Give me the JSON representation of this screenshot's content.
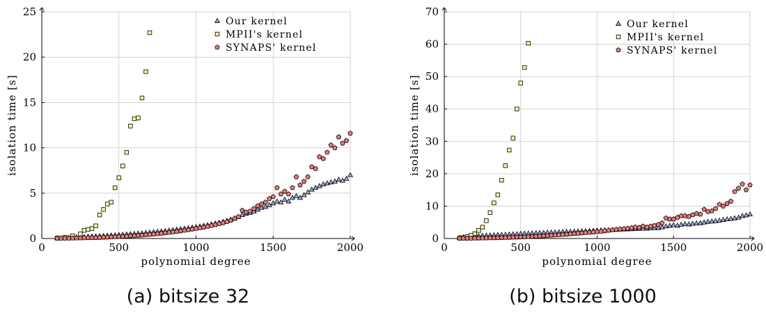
{
  "colors": {
    "ours": "#9aa8d6",
    "mpii": "#f1f3a3",
    "synaps": "#e87b7b",
    "stroke": "#000000",
    "grid": "#c8c8c8"
  },
  "chart_data": [
    {
      "type": "scatter",
      "caption": "(a) bitsize 32",
      "xlabel": "polynomial degree",
      "ylabel": "isolation time [s]",
      "xlim": [
        0,
        2000
      ],
      "ylim": [
        0,
        25
      ],
      "xticks": [
        0,
        500,
        1000,
        1500,
        2000
      ],
      "yticks": [
        0,
        5,
        10,
        15,
        20,
        25
      ],
      "grid": true,
      "legend_position": "top-right",
      "series": [
        {
          "name": "Our kernel",
          "marker": "triangle",
          "x": [
            100,
            125,
            150,
            175,
            200,
            225,
            250,
            275,
            300,
            325,
            350,
            375,
            400,
            425,
            450,
            475,
            500,
            525,
            550,
            575,
            600,
            625,
            650,
            675,
            700,
            725,
            750,
            775,
            800,
            825,
            850,
            875,
            900,
            925,
            950,
            975,
            1000,
            1025,
            1050,
            1075,
            1100,
            1125,
            1150,
            1175,
            1200,
            1225,
            1250,
            1275,
            1300,
            1325,
            1350,
            1375,
            1400,
            1425,
            1450,
            1475,
            1500,
            1525,
            1550,
            1575,
            1600,
            1625,
            1650,
            1675,
            1700,
            1725,
            1750,
            1775,
            1800,
            1825,
            1850,
            1875,
            1900,
            1925,
            1950,
            1975,
            2000
          ],
          "y": [
            0.05,
            0.07,
            0.09,
            0.11,
            0.13,
            0.15,
            0.17,
            0.19,
            0.21,
            0.24,
            0.26,
            0.28,
            0.31,
            0.33,
            0.36,
            0.38,
            0.41,
            0.44,
            0.47,
            0.5,
            0.53,
            0.57,
            0.6,
            0.64,
            0.68,
            0.72,
            0.76,
            0.8,
            0.85,
            0.9,
            0.95,
            1.0,
            1.05,
            1.1,
            1.16,
            1.22,
            1.28,
            1.35,
            1.42,
            1.5,
            1.58,
            1.67,
            1.76,
            1.86,
            1.97,
            2.1,
            2.25,
            2.4,
            2.6,
            2.75,
            2.85,
            3.0,
            3.2,
            3.4,
            3.5,
            3.7,
            3.9,
            4.1,
            4.0,
            4.3,
            4.1,
            4.5,
            4.7,
            4.5,
            4.8,
            5.1,
            5.4,
            5.6,
            5.8,
            6.0,
            6.1,
            6.2,
            6.3,
            6.5,
            6.4,
            6.6,
            7.0
          ]
        },
        {
          "name": "MPII's kernel",
          "marker": "square",
          "x": [
            100,
            150,
            200,
            250,
            275,
            300,
            325,
            350,
            375,
            400,
            425,
            450,
            475,
            500,
            525,
            550,
            575,
            600,
            625,
            650,
            675,
            700
          ],
          "y": [
            0.05,
            0.15,
            0.3,
            0.5,
            0.9,
            1.0,
            1.1,
            1.4,
            2.6,
            3.2,
            3.8,
            4.0,
            5.6,
            6.7,
            8.0,
            9.5,
            12.4,
            13.2,
            13.3,
            15.5,
            18.4,
            22.7
          ]
        },
        {
          "name": "SYNAPS' kernel",
          "marker": "pentagon",
          "x": [
            100,
            125,
            150,
            175,
            200,
            225,
            250,
            275,
            300,
            325,
            350,
            375,
            400,
            425,
            450,
            475,
            500,
            525,
            550,
            575,
            600,
            625,
            650,
            675,
            700,
            725,
            750,
            775,
            800,
            825,
            850,
            875,
            900,
            925,
            950,
            975,
            1000,
            1025,
            1050,
            1075,
            1100,
            1125,
            1150,
            1175,
            1200,
            1225,
            1250,
            1275,
            1300,
            1325,
            1350,
            1375,
            1400,
            1425,
            1450,
            1475,
            1500,
            1525,
            1550,
            1575,
            1600,
            1625,
            1650,
            1675,
            1700,
            1725,
            1750,
            1775,
            1800,
            1825,
            1850,
            1875,
            1900,
            1925,
            1950,
            1975,
            2000
          ],
          "y": [
            0.02,
            0.02,
            0.03,
            0.03,
            0.04,
            0.05,
            0.06,
            0.07,
            0.08,
            0.09,
            0.1,
            0.11,
            0.13,
            0.15,
            0.17,
            0.19,
            0.21,
            0.23,
            0.25,
            0.28,
            0.31,
            0.34,
            0.37,
            0.4,
            0.44,
            0.48,
            0.52,
            0.57,
            0.62,
            0.67,
            0.72,
            0.78,
            0.84,
            0.9,
            0.96,
            1.03,
            1.1,
            1.17,
            1.25,
            1.33,
            1.42,
            1.52,
            1.62,
            1.73,
            1.85,
            2.0,
            2.2,
            2.4,
            3.1,
            2.9,
            3.0,
            3.3,
            3.6,
            3.8,
            4.0,
            4.4,
            4.6,
            5.6,
            4.9,
            5.2,
            4.9,
            5.6,
            6.8,
            5.9,
            6.3,
            6.8,
            7.9,
            7.7,
            9.0,
            8.8,
            9.5,
            10.3,
            10.0,
            11.2,
            10.5,
            10.8,
            11.6
          ]
        }
      ]
    },
    {
      "type": "scatter",
      "caption": "(b) bitsize 1000",
      "xlabel": "polynomial degree",
      "ylabel": "isolation time [s]",
      "xlim": [
        0,
        2000
      ],
      "ylim": [
        0,
        70
      ],
      "xticks": [
        0,
        500,
        1000,
        1500,
        2000
      ],
      "yticks": [
        0,
        10,
        20,
        30,
        40,
        50,
        60,
        70
      ],
      "grid": true,
      "legend_position": "top-right",
      "series": [
        {
          "name": "Our kernel",
          "marker": "triangle",
          "x": [
            100,
            125,
            150,
            175,
            200,
            225,
            250,
            275,
            300,
            325,
            350,
            375,
            400,
            425,
            450,
            475,
            500,
            525,
            550,
            575,
            600,
            625,
            650,
            675,
            700,
            725,
            750,
            775,
            800,
            825,
            850,
            875,
            900,
            925,
            950,
            975,
            1000,
            1025,
            1050,
            1075,
            1100,
            1125,
            1150,
            1175,
            1200,
            1225,
            1250,
            1275,
            1300,
            1325,
            1350,
            1375,
            1400,
            1425,
            1450,
            1475,
            1500,
            1525,
            1550,
            1575,
            1600,
            1625,
            1650,
            1675,
            1700,
            1725,
            1750,
            1775,
            1800,
            1825,
            1850,
            1875,
            1900,
            1925,
            1950,
            1975,
            2000
          ],
          "y": [
            0.3,
            0.4,
            0.5,
            0.6,
            0.7,
            0.8,
            0.9,
            0.95,
            1.0,
            1.1,
            1.15,
            1.2,
            1.25,
            1.3,
            1.35,
            1.4,
            1.5,
            1.55,
            1.6,
            1.65,
            1.7,
            1.75,
            1.8,
            1.85,
            1.9,
            1.95,
            2.0,
            2.05,
            2.1,
            2.15,
            2.2,
            2.25,
            2.3,
            2.35,
            2.4,
            2.45,
            2.5,
            2.55,
            2.6,
            2.65,
            2.7,
            2.75,
            2.8,
            2.85,
            2.9,
            2.95,
            3.0,
            3.05,
            3.1,
            3.1,
            3.2,
            3.2,
            3.3,
            3.5,
            3.8,
            4.0,
            4.2,
            4.0,
            4.3,
            4.5,
            4.4,
            4.6,
            4.7,
            4.8,
            5.0,
            5.2,
            5.3,
            5.4,
            5.6,
            5.8,
            6.0,
            6.1,
            6.3,
            6.5,
            7.0,
            7.2,
            7.5
          ]
        },
        {
          "name": "MPII's kernel",
          "marker": "square",
          "x": [
            100,
            125,
            150,
            175,
            200,
            225,
            250,
            275,
            300,
            325,
            350,
            375,
            400,
            425,
            450,
            475,
            500,
            525,
            550
          ],
          "y": [
            0.1,
            0.3,
            0.6,
            1.0,
            1.5,
            2.5,
            3.5,
            5.5,
            8.0,
            11.0,
            13.5,
            18.0,
            22.5,
            27.3,
            31.0,
            40.0,
            48.0,
            52.8,
            60.3
          ]
        },
        {
          "name": "SYNAPS' kernel",
          "marker": "pentagon",
          "x": [
            100,
            125,
            150,
            175,
            200,
            225,
            250,
            275,
            300,
            325,
            350,
            375,
            400,
            425,
            450,
            475,
            500,
            525,
            550,
            575,
            600,
            625,
            650,
            675,
            700,
            725,
            750,
            775,
            800,
            825,
            850,
            875,
            900,
            925,
            950,
            975,
            1000,
            1025,
            1050,
            1075,
            1100,
            1125,
            1150,
            1175,
            1200,
            1225,
            1250,
            1275,
            1300,
            1325,
            1350,
            1375,
            1400,
            1425,
            1450,
            1475,
            1500,
            1525,
            1550,
            1575,
            1600,
            1625,
            1650,
            1675,
            1700,
            1725,
            1750,
            1775,
            1800,
            1825,
            1850,
            1875,
            1900,
            1925,
            1950,
            1975,
            2000
          ],
          "y": [
            0.05,
            0.06,
            0.07,
            0.08,
            0.1,
            0.12,
            0.14,
            0.16,
            0.18,
            0.2,
            0.23,
            0.26,
            0.3,
            0.34,
            0.38,
            0.42,
            0.47,
            0.52,
            0.57,
            0.63,
            0.69,
            0.75,
            0.82,
            0.89,
            0.96,
            1.04,
            1.12,
            1.2,
            1.3,
            1.4,
            1.5,
            1.6,
            1.7,
            1.8,
            1.9,
            2.0,
            2.1,
            2.2,
            2.35,
            2.5,
            2.65,
            2.8,
            2.9,
            3.0,
            3.1,
            3.3,
            3.5,
            3.4,
            3.8,
            3.5,
            3.8,
            4.0,
            4.3,
            4.8,
            6.3,
            6.0,
            6.0,
            6.5,
            7.0,
            7.0,
            6.8,
            7.3,
            7.7,
            7.5,
            9.0,
            8.3,
            8.5,
            9.2,
            10.5,
            10.0,
            10.8,
            11.5,
            14.5,
            15.5,
            16.8,
            15.0,
            16.5
          ]
        }
      ]
    }
  ]
}
